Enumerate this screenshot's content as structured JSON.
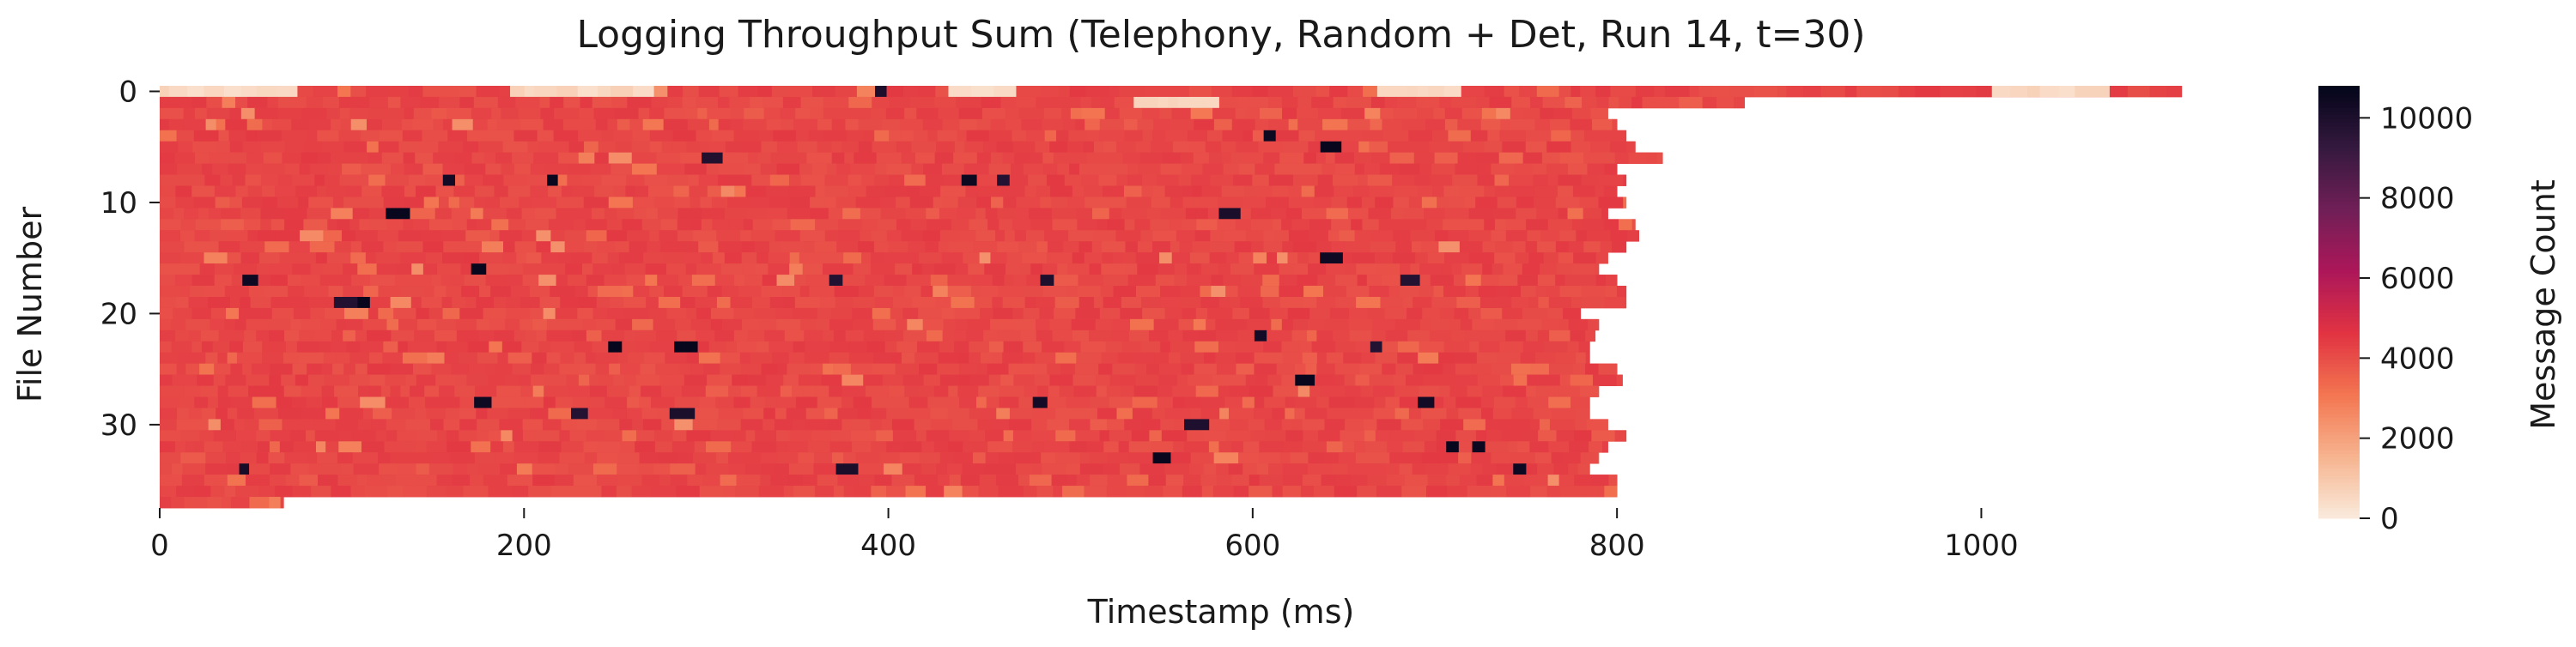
{
  "chart_data": {
    "type": "heatmap",
    "title": "Logging Throughput Sum (Telephony, Random + Det, Run 14, t=30)",
    "xlabel": "Timestamp (ms)",
    "ylabel": "File Number",
    "colorbar_label": "Message Count",
    "xlim": [
      0,
      1120
    ],
    "ylim": [
      0,
      37
    ],
    "x_ticks": [
      0,
      200,
      400,
      600,
      800,
      1000
    ],
    "y_ticks": [
      0,
      10,
      20,
      30
    ],
    "colorbar_range": [
      0,
      10800
    ],
    "colorbar_ticks": [
      0,
      2000,
      4000,
      6000,
      8000,
      10000
    ],
    "colormap": "rocket_r",
    "colormap_stops": [
      "#faebdd",
      "#f6b48f",
      "#f37651",
      "#e13342",
      "#ad1759",
      "#701f57",
      "#35193e",
      "#03051a"
    ],
    "typical_value": 4200,
    "rows": 37,
    "row_end_ms": [
      1110,
      870,
      795,
      800,
      805,
      810,
      825,
      800,
      805,
      800,
      805,
      795,
      810,
      812,
      805,
      795,
      790,
      800,
      805,
      805,
      780,
      790,
      788,
      785,
      785,
      800,
      803,
      790,
      785,
      785,
      795,
      805,
      795,
      790,
      785,
      800,
      800
    ],
    "row0_low_segments_ms": [
      [
        0,
        70
      ],
      [
        195,
        245
      ],
      [
        250,
        270
      ],
      [
        430,
        475
      ],
      [
        670,
        720
      ],
      [
        1010,
        1075
      ]
    ],
    "row1_low_segments_ms": [
      [
        530,
        580
      ]
    ],
    "row37_end_ms": 68
  }
}
